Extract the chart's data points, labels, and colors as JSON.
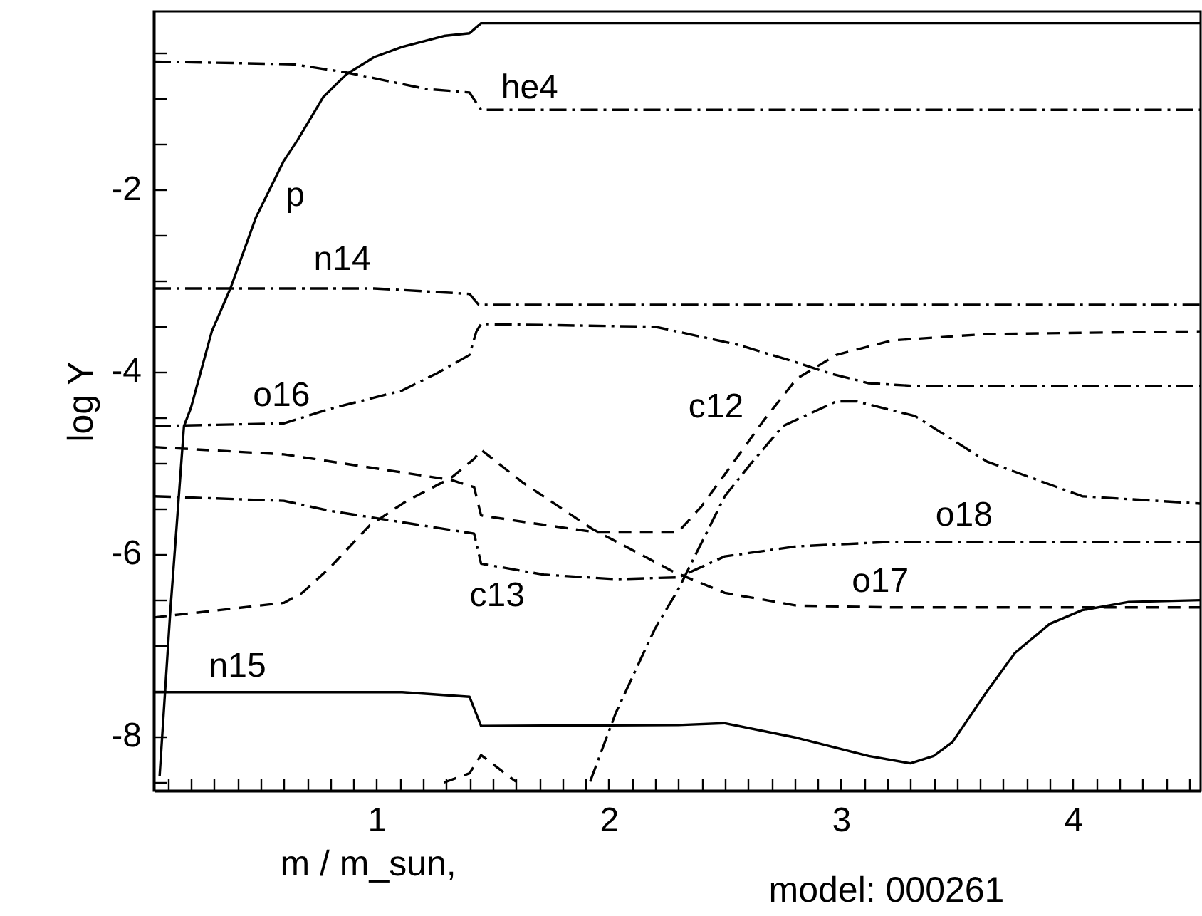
{
  "chart_data": {
    "type": "line",
    "xlabel": "m / m_sun,",
    "ylabel": "log Y",
    "xlim": [
      0.04,
      4.55
    ],
    "ylim": [
      -8.6,
      -0.05
    ],
    "xticks": [
      {
        "value": 0.1,
        "label": null
      },
      {
        "value": 0.2,
        "label": null
      },
      {
        "value": 0.3,
        "label": null
      },
      {
        "value": 0.4,
        "label": null
      },
      {
        "value": 0.5,
        "label": null
      },
      {
        "value": 0.6,
        "label": null
      },
      {
        "value": 0.7,
        "label": null
      },
      {
        "value": 0.8,
        "label": null
      },
      {
        "value": 0.9,
        "label": null
      },
      1,
      {
        "value": 1.1,
        "label": null
      },
      {
        "value": 1.2,
        "label": null
      },
      {
        "value": 1.3,
        "label": null
      },
      {
        "value": 1.4,
        "label": null
      },
      {
        "value": 1.5,
        "label": null
      },
      {
        "value": 1.6,
        "label": null
      },
      {
        "value": 1.7,
        "label": null
      },
      {
        "value": 1.8,
        "label": null
      },
      {
        "value": 1.9,
        "label": null
      },
      2,
      {
        "value": 2.1,
        "label": null
      },
      {
        "value": 2.2,
        "label": null
      },
      {
        "value": 2.3,
        "label": null
      },
      {
        "value": 2.4,
        "label": null
      },
      {
        "value": 2.5,
        "label": null
      },
      {
        "value": 2.6,
        "label": null
      },
      {
        "value": 2.7,
        "label": null
      },
      {
        "value": 2.8,
        "label": null
      },
      {
        "value": 2.9,
        "label": null
      },
      3,
      {
        "value": 3.1,
        "label": null
      },
      {
        "value": 3.2,
        "label": null
      },
      {
        "value": 3.3,
        "label": null
      },
      {
        "value": 3.4,
        "label": null
      },
      {
        "value": 3.5,
        "label": null
      },
      {
        "value": 3.6,
        "label": null
      },
      {
        "value": 3.7,
        "label": null
      },
      {
        "value": 3.8,
        "label": null
      },
      {
        "value": 3.9,
        "label": null
      },
      4,
      {
        "value": 4.1,
        "label": null
      },
      {
        "value": 4.2,
        "label": null
      },
      {
        "value": 4.3,
        "label": null
      },
      {
        "value": 4.4,
        "label": null
      },
      {
        "value": 4.5,
        "label": null
      }
    ],
    "yticks": [
      {
        "value": -0.5,
        "label": null
      },
      {
        "value": -1,
        "label": null
      },
      {
        "value": -1.5,
        "label": null
      },
      -2,
      {
        "value": -2.5,
        "label": null
      },
      {
        "value": -3,
        "label": null
      },
      {
        "value": -3.5,
        "label": null
      },
      -4,
      {
        "value": -4.5,
        "label": null
      },
      {
        "value": -5,
        "label": null
      },
      {
        "value": -5.5,
        "label": null
      },
      -6,
      {
        "value": -6.5,
        "label": null
      },
      {
        "value": -7,
        "label": null
      },
      {
        "value": -7.5,
        "label": null
      },
      -8,
      {
        "value": -8.5,
        "label": null
      }
    ],
    "grid": false,
    "series": [
      {
        "color": "#000000",
        "line_style": "solid",
        "x": [
          0.065,
          0.11,
          0.14,
          0.17,
          0.2,
          0.29,
          0.37,
          0.48,
          0.6,
          0.66,
          0.77,
          0.87,
          0.99,
          1.11,
          1.29,
          1.4,
          1.45,
          4.55
        ],
        "values": [
          -8.44,
          -6.67,
          -5.64,
          -4.6,
          -4.4,
          -3.56,
          -3.09,
          -2.31,
          -1.69,
          -1.46,
          -0.99,
          -0.74,
          -0.55,
          -0.44,
          -0.32,
          -0.29,
          -0.18,
          -0.18
        ]
      },
      {
        "color": "#000000",
        "line_style": "dashdot",
        "x": [
          0.04,
          0.64,
          0.87,
          1.21,
          1.4,
          1.45,
          4.55
        ],
        "values": [
          -0.6,
          -0.63,
          -0.72,
          -0.9,
          -0.94,
          -1.13,
          -1.13
        ]
      },
      {
        "color": "#000000",
        "line_style": "dashdot",
        "x": [
          0.04,
          0.99,
          1.4,
          1.44,
          4.55
        ],
        "values": [
          -3.09,
          -3.09,
          -3.15,
          -3.27,
          -3.27
        ]
      },
      {
        "color": "#000000",
        "line_style": "dashdot",
        "x": [
          0.04,
          0.6,
          0.8,
          1.11,
          1.26,
          1.4,
          1.43,
          1.45,
          2.2,
          2.56,
          2.77,
          2.95,
          3.12,
          3.32,
          4.55
        ],
        "values": [
          -4.6,
          -4.57,
          -4.41,
          -4.21,
          -4.02,
          -3.82,
          -3.56,
          -3.48,
          -3.51,
          -3.71,
          -3.87,
          -4.02,
          -4.13,
          -4.16,
          -4.16
        ]
      },
      {
        "color": "#000000",
        "line_style": "dashed",
        "x": [
          0.04,
          0.6,
          1.32,
          1.42,
          1.45,
          1.63,
          1.93,
          2.3,
          2.4,
          2.52,
          2.67,
          2.81,
          2.98,
          3.22,
          3.63,
          4.55
        ],
        "values": [
          -4.83,
          -4.91,
          -5.19,
          -5.27,
          -5.58,
          -5.65,
          -5.76,
          -5.76,
          -5.48,
          -5.06,
          -4.53,
          -4.08,
          -3.82,
          -3.66,
          -3.59,
          -3.56
        ]
      },
      {
        "color": "#000000",
        "line_style": "dashed",
        "x": [
          0.04,
          0.6,
          0.68,
          0.8,
          0.97,
          1.13,
          1.32,
          1.42,
          1.45,
          1.63,
          1.93,
          2.28,
          2.5,
          2.81,
          3.22,
          4.55
        ],
        "values": [
          -6.7,
          -6.54,
          -6.43,
          -6.15,
          -5.69,
          -5.42,
          -5.17,
          -4.96,
          -4.86,
          -5.22,
          -5.73,
          -6.2,
          -6.43,
          -6.57,
          -6.59,
          -6.59
        ]
      },
      {
        "color": "#000000",
        "line_style": "dashed",
        "x": [
          1.29,
          1.4,
          1.45,
          1.6
        ],
        "values": [
          -8.51,
          -8.41,
          -8.21,
          -8.5
        ]
      },
      {
        "color": "#000000",
        "line_style": "dashdot",
        "x": [
          0.04,
          0.6,
          0.8,
          1.42,
          1.45,
          1.72,
          2.03,
          2.3,
          2.5,
          2.81,
          3.22,
          4.55
        ],
        "values": [
          -5.37,
          -5.42,
          -5.53,
          -5.78,
          -6.11,
          -6.23,
          -6.28,
          -6.26,
          -6.03,
          -5.92,
          -5.87,
          -5.87
        ]
      },
      {
        "color": "#000000",
        "line_style": "dashdot",
        "x": [
          1.92,
          2.03,
          2.15,
          2.2,
          2.3,
          2.5,
          2.61,
          2.75,
          2.98,
          3.07,
          3.32,
          3.63,
          4.04,
          4.55
        ],
        "values": [
          -8.5,
          -7.75,
          -7.09,
          -6.82,
          -6.39,
          -5.37,
          -5.02,
          -4.6,
          -4.33,
          -4.33,
          -4.49,
          -4.99,
          -5.37,
          -5.45
        ]
      },
      {
        "color": "#000000",
        "line_style": "solid",
        "x": [
          0.04,
          1.11,
          1.4,
          1.45,
          2.3,
          2.5,
          2.81,
          3.12,
          3.3,
          3.4,
          3.48,
          3.63,
          3.75,
          3.9,
          4.04,
          4.24,
          4.55
        ],
        "values": [
          -7.52,
          -7.52,
          -7.57,
          -7.89,
          -7.88,
          -7.86,
          -8.02,
          -8.22,
          -8.3,
          -8.22,
          -8.07,
          -7.51,
          -7.09,
          -6.77,
          -6.62,
          -6.53,
          -6.51
        ]
      }
    ],
    "annotations": [
      "p",
      "he4",
      "n14",
      "o16",
      "c12",
      "c13",
      "n15",
      "o18",
      "o17",
      "model: 000261"
    ]
  }
}
